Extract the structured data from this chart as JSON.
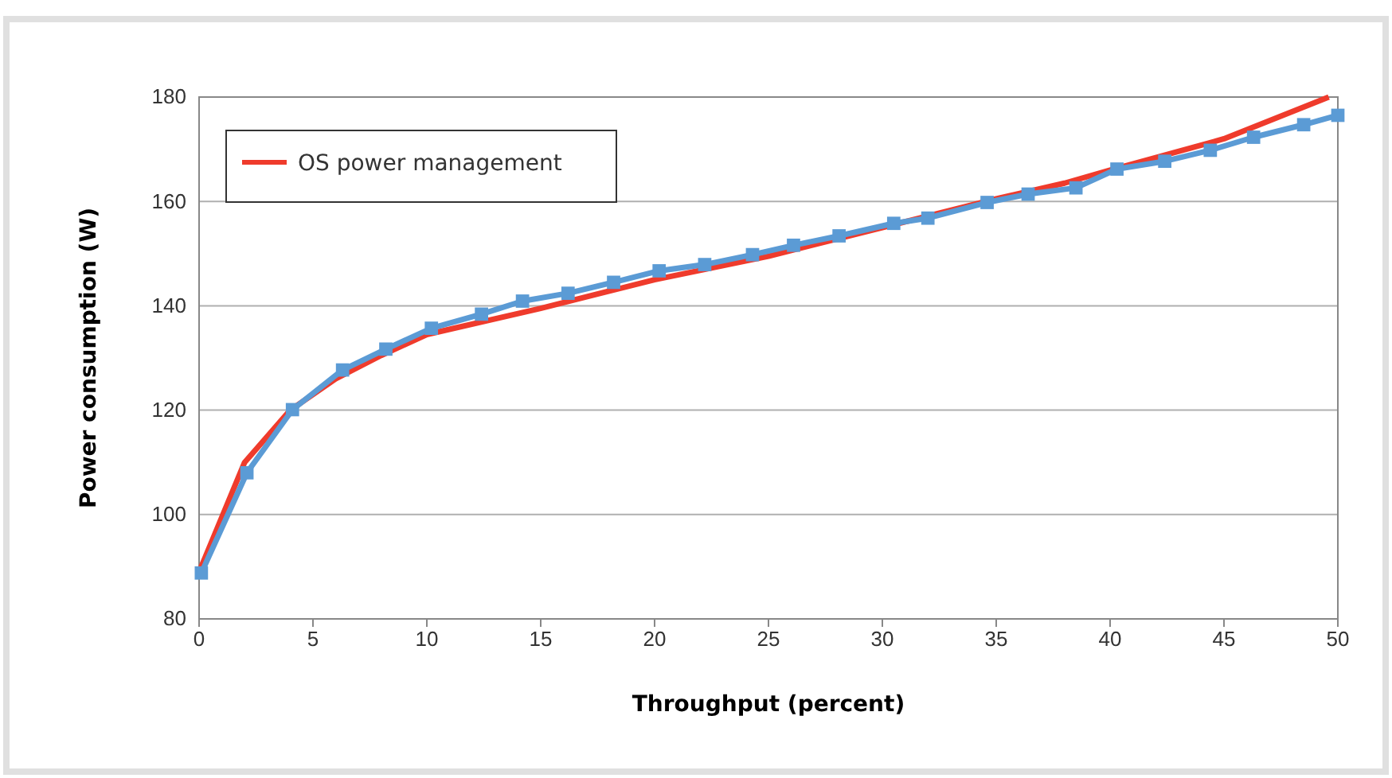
{
  "chart_data": {
    "type": "line",
    "xlabel": "Throughput (percent)",
    "ylabel": "Power consumption (W)",
    "xlim": [
      0,
      50
    ],
    "xticks": [
      0,
      5,
      10,
      15,
      20,
      25,
      30,
      35,
      40,
      45,
      50
    ],
    "ylim": [
      80,
      180
    ],
    "yticks": [
      80,
      100,
      120,
      140,
      160,
      180
    ],
    "grid": "y",
    "legend": "top left",
    "series": [
      {
        "color": "#5b9bd5",
        "marker": "square",
        "x": [
          0.1,
          2.1,
          4.1,
          6.3,
          8.2,
          10.2,
          12.4,
          14.2,
          16.2,
          18.2,
          20.2,
          22.2,
          24.3,
          26.1,
          28.1,
          30.5,
          32.0,
          34.6,
          36.4,
          38.5,
          40.3,
          42.4,
          44.4,
          46.3,
          48.5,
          50
        ],
        "values": [
          88.8,
          108,
          120.1,
          127.7,
          131.7,
          135.7,
          138.4,
          140.9,
          142.4,
          144.5,
          146.7,
          147.9,
          149.8,
          151.6,
          153.4,
          155.8,
          156.8,
          159.8,
          161.4,
          162.6,
          166.2,
          167.7,
          169.8,
          172.3,
          174.7,
          176.5
        ]
      },
      {
        "name": "OS power management",
        "color": "#ef3b2c",
        "marker": "none",
        "x": [
          0,
          2,
          4,
          6,
          8,
          10,
          15,
          20,
          25,
          30,
          35,
          38,
          40,
          45,
          49.6
        ],
        "values": [
          89,
          110,
          120,
          126,
          130.5,
          134.5,
          139.5,
          145,
          149.5,
          155,
          160.5,
          163.5,
          166,
          172,
          180
        ]
      }
    ]
  }
}
